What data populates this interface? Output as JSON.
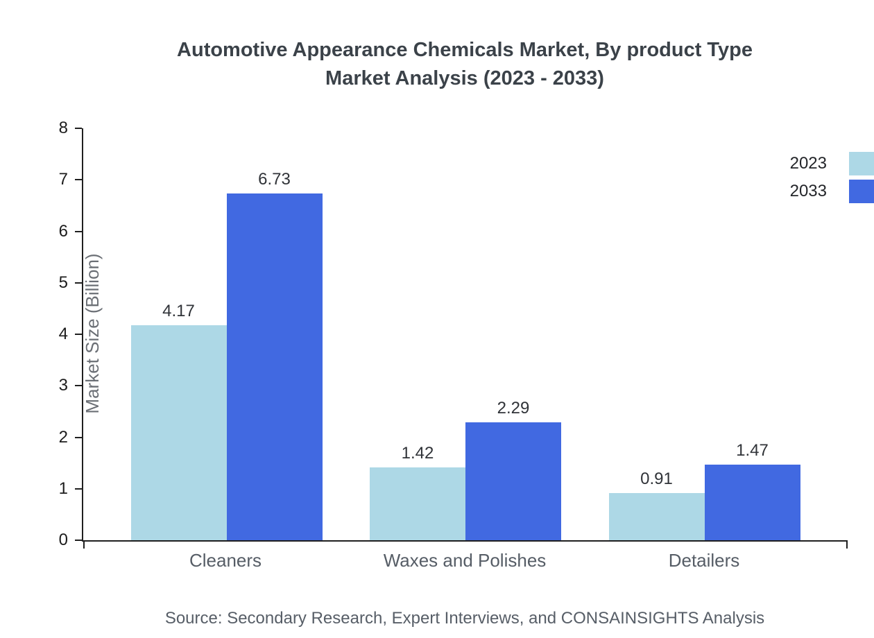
{
  "title": {
    "line1": "Automotive Appearance Chemicals Market, By product Type",
    "line2": "Market Analysis (2023 - 2033)"
  },
  "chart_data": {
    "type": "bar",
    "title": "Automotive Appearance Chemicals Market, By product Type Market Analysis (2023 - 2033)",
    "categories": [
      "Cleaners",
      "Waxes and Polishes",
      "Detailers"
    ],
    "series": [
      {
        "name": "2023",
        "color": "#add8e6",
        "values": [
          4.17,
          1.42,
          0.91
        ]
      },
      {
        "name": "2033",
        "color": "#4169e1",
        "values": [
          6.73,
          2.29,
          1.47
        ]
      }
    ],
    "xlabel": "",
    "ylabel": "Market Size (Billion)",
    "ylim": [
      0,
      8
    ],
    "yticks": [
      0,
      1,
      2,
      3,
      4,
      5,
      6,
      7,
      8
    ],
    "grid": false,
    "legend_position": "top-right",
    "value_labels_decimals": 2
  },
  "source": "Source: Secondary Research, Expert Interviews, and CONSAINSIGHTS Analysis"
}
